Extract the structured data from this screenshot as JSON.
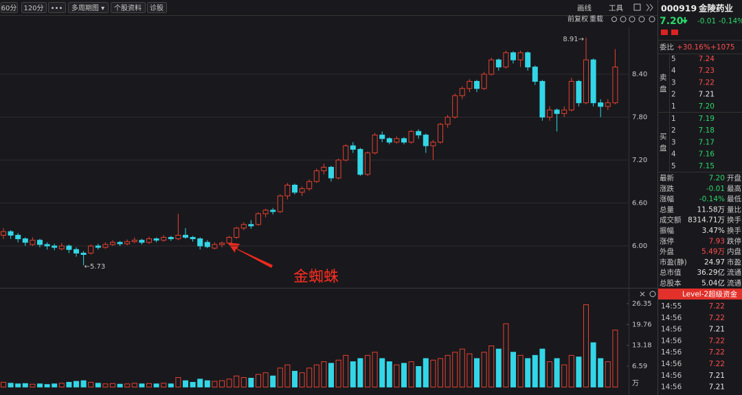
{
  "toolbar": {
    "left": [
      "60分",
      "120分",
      "•••",
      "多周期图 ▾",
      "个股资料",
      "诊股"
    ],
    "right": [
      "画线",
      "工具"
    ],
    "sub": [
      "前复权",
      "重载"
    ]
  },
  "chart_data": [
    {
      "type": "candlestick",
      "up_color": "#e8412f",
      "down_color": "#33d6e6",
      "grid": true,
      "ylim": [
        5.453,
        9.024
      ],
      "yticks": [
        {
          "value": 8.4,
          "label": "8.40"
        },
        {
          "value": 7.8,
          "label": "7.80"
        },
        {
          "value": 7.2,
          "label": "7.20"
        },
        {
          "value": 6.6,
          "label": "6.60"
        },
        {
          "value": 6,
          "label": "6.00"
        }
      ],
      "annotations": {
        "high": "8.91→",
        "low": "←5.73",
        "callout": "金蜘蛛"
      },
      "ohlc": [
        [
          6.15,
          6.25,
          6.1,
          6.2
        ],
        [
          6.2,
          6.22,
          6.1,
          6.15
        ],
        [
          6.15,
          6.18,
          6.05,
          6.1
        ],
        [
          6.1,
          6.12,
          6.0,
          6.05
        ],
        [
          6.02,
          6.12,
          6.0,
          6.08
        ],
        [
          6.08,
          6.1,
          5.98,
          6.02
        ],
        [
          6.02,
          6.05,
          5.95,
          6.0
        ],
        [
          6.0,
          6.03,
          5.94,
          5.98
        ],
        [
          5.96,
          6.04,
          5.94,
          6.0
        ],
        [
          6.0,
          6.02,
          5.9,
          5.95
        ],
        [
          5.95,
          5.98,
          5.85,
          5.9
        ],
        [
          5.9,
          5.93,
          5.73,
          5.88
        ],
        [
          5.9,
          6.02,
          5.88,
          6.0
        ],
        [
          6.0,
          6.03,
          5.95,
          5.98
        ],
        [
          5.98,
          6.05,
          5.96,
          6.02
        ],
        [
          6.02,
          6.08,
          6.0,
          6.05
        ],
        [
          6.05,
          6.07,
          6.0,
          6.03
        ],
        [
          6.03,
          6.09,
          6.01,
          6.06
        ],
        [
          6.06,
          6.12,
          6.04,
          6.08
        ],
        [
          6.08,
          6.1,
          6.02,
          6.05
        ],
        [
          6.05,
          6.13,
          6.03,
          6.1
        ],
        [
          6.1,
          6.12,
          6.05,
          6.08
        ],
        [
          6.08,
          6.15,
          6.06,
          6.12
        ],
        [
          6.12,
          6.14,
          6.07,
          6.1
        ],
        [
          6.1,
          6.45,
          6.08,
          6.15
        ],
        [
          6.15,
          6.25,
          6.1,
          6.12
        ],
        [
          6.12,
          6.14,
          6.06,
          6.1
        ],
        [
          6.1,
          6.12,
          5.95,
          6.0
        ],
        [
          6.05,
          6.08,
          5.97,
          5.99
        ],
        [
          5.97,
          6.05,
          5.95,
          6.02
        ],
        [
          6.02,
          6.06,
          5.98,
          6.04
        ],
        [
          6.04,
          6.14,
          6.02,
          6.12
        ],
        [
          6.12,
          6.27,
          6.1,
          6.25
        ],
        [
          6.25,
          6.33,
          6.22,
          6.3
        ],
        [
          6.3,
          6.36,
          6.24,
          6.28
        ],
        [
          6.3,
          6.47,
          6.28,
          6.45
        ],
        [
          6.45,
          6.52,
          6.4,
          6.5
        ],
        [
          6.5,
          6.53,
          6.44,
          6.48
        ],
        [
          6.48,
          6.72,
          6.46,
          6.7
        ],
        [
          6.7,
          6.88,
          6.65,
          6.85
        ],
        [
          6.85,
          6.87,
          6.72,
          6.75
        ],
        [
          6.75,
          6.83,
          6.7,
          6.8
        ],
        [
          6.8,
          6.93,
          6.77,
          6.9
        ],
        [
          6.9,
          7.08,
          6.88,
          7.05
        ],
        [
          7.05,
          7.15,
          7.0,
          7.1
        ],
        [
          7.1,
          7.12,
          6.9,
          6.95
        ],
        [
          6.95,
          7.22,
          6.93,
          7.2
        ],
        [
          7.2,
          7.42,
          7.18,
          7.4
        ],
        [
          7.4,
          7.45,
          7.3,
          7.35
        ],
        [
          7.35,
          7.37,
          6.98,
          7.0
        ],
        [
          7.0,
          7.32,
          6.98,
          7.3
        ],
        [
          7.3,
          7.58,
          7.28,
          7.55
        ],
        [
          7.55,
          7.6,
          7.45,
          7.5
        ],
        [
          7.5,
          7.52,
          7.42,
          7.45
        ],
        [
          7.45,
          7.53,
          7.43,
          7.5
        ],
        [
          7.5,
          7.52,
          7.42,
          7.45
        ],
        [
          7.45,
          7.62,
          7.43,
          7.6
        ],
        [
          7.6,
          7.63,
          7.5,
          7.55
        ],
        [
          7.55,
          7.57,
          7.3,
          7.4
        ],
        [
          7.4,
          7.48,
          7.2,
          7.45
        ],
        [
          7.45,
          7.72,
          7.43,
          7.7
        ],
        [
          7.7,
          7.83,
          7.65,
          7.8
        ],
        [
          7.8,
          8.13,
          7.78,
          8.1
        ],
        [
          8.1,
          8.23,
          8.05,
          8.2
        ],
        [
          8.2,
          8.33,
          8.15,
          8.3
        ],
        [
          8.3,
          8.32,
          8.15,
          8.2
        ],
        [
          8.2,
          8.43,
          8.18,
          8.4
        ],
        [
          8.4,
          8.63,
          8.38,
          8.6
        ],
        [
          8.6,
          8.62,
          8.45,
          8.5
        ],
        [
          8.5,
          8.73,
          8.48,
          8.7
        ],
        [
          8.7,
          8.72,
          8.55,
          8.6
        ],
        [
          8.6,
          8.73,
          8.5,
          8.7
        ],
        [
          8.7,
          8.72,
          8.45,
          8.5
        ],
        [
          8.5,
          8.52,
          8.25,
          8.3
        ],
        [
          8.3,
          8.32,
          7.75,
          7.8
        ],
        [
          7.8,
          7.95,
          7.75,
          7.9
        ],
        [
          7.9,
          7.92,
          7.6,
          7.85
        ],
        [
          7.85,
          7.95,
          7.8,
          7.9
        ],
        [
          7.9,
          8.35,
          7.88,
          8.3
        ],
        [
          8.3,
          8.32,
          7.95,
          8.0
        ],
        [
          8.0,
          8.91,
          7.98,
          8.6
        ],
        [
          8.6,
          8.62,
          7.95,
          8.0
        ],
        [
          8.0,
          8.05,
          7.8,
          7.95
        ],
        [
          7.95,
          8.05,
          7.9,
          8.0
        ],
        [
          8.0,
          8.75,
          7.98,
          8.5
        ]
      ]
    },
    {
      "type": "bar",
      "unit_label": "万",
      "ylim": [
        0,
        27.65
      ],
      "yticks": [
        26.35,
        19.76,
        13.18,
        6.59
      ],
      "values": [
        1.5,
        1.2,
        1.0,
        1.1,
        0.9,
        1.0,
        0.8,
        1.0,
        1.2,
        1.5,
        1.8,
        2.0,
        1.5,
        1.2,
        1.0,
        1.1,
        0.9,
        1.0,
        1.2,
        1.0,
        1.1,
        1.0,
        1.2,
        1.0,
        3.0,
        2.0,
        1.5,
        2.5,
        2.0,
        1.8,
        2.0,
        2.5,
        3.5,
        3.0,
        2.8,
        4.0,
        4.5,
        3.5,
        6.0,
        7.0,
        5.0,
        4.5,
        6.0,
        7.0,
        8.0,
        7.5,
        8.5,
        10.0,
        8.0,
        9.0,
        10.0,
        11.0,
        9.0,
        8.0,
        7.0,
        7.5,
        8.0,
        6.5,
        9.0,
        8.5,
        9.0,
        10.0,
        11.0,
        12.0,
        10.5,
        9.0,
        11.0,
        13.0,
        12.0,
        20.0,
        11.0,
        10.0,
        9.0,
        10.0,
        12.0,
        8.0,
        9.0,
        7.0,
        10.0,
        9.5,
        26.0,
        14.0,
        9.0,
        8.0,
        18.0
      ]
    }
  ],
  "quote": {
    "code": "000919",
    "name": "金陵药业",
    "price": "7.20",
    "change": "-0.01",
    "change_pct": "-0.14%",
    "ratio_label": "委比",
    "ratio": "+30.16%",
    "ratio_diff": "+1075",
    "sell_label": [
      "卖",
      "盘"
    ],
    "buy_label": [
      "买",
      "盘"
    ],
    "sell": [
      {
        "level": "5",
        "price": "7.24",
        "tone": "up"
      },
      {
        "level": "4",
        "price": "7.23",
        "tone": "up"
      },
      {
        "level": "3",
        "price": "7.22",
        "tone": "up"
      },
      {
        "level": "2",
        "price": "7.21",
        "tone": "flat"
      },
      {
        "level": "1",
        "price": "7.20",
        "tone": "down"
      }
    ],
    "buy": [
      {
        "level": "1",
        "price": "7.19",
        "tone": "down"
      },
      {
        "level": "2",
        "price": "7.18",
        "tone": "down"
      },
      {
        "level": "3",
        "price": "7.17",
        "tone": "down"
      },
      {
        "level": "4",
        "price": "7.16",
        "tone": "down"
      },
      {
        "level": "5",
        "price": "7.15",
        "tone": "down"
      }
    ],
    "stats": [
      {
        "label": "最新",
        "value": "7.20",
        "right": "开盘",
        "tone": "down"
      },
      {
        "label": "涨跌",
        "value": "-0.01",
        "right": "最高",
        "tone": "down"
      },
      {
        "label": "涨幅",
        "value": "-0.14%",
        "right": "最低",
        "tone": "down"
      },
      {
        "label": "总量",
        "value": "11.58万",
        "right": "量比",
        "tone": "flat"
      },
      {
        "label": "成交额",
        "value": "8314.71万",
        "right": "换手",
        "tone": "flat"
      },
      {
        "label": "振幅",
        "value": "3.47%",
        "right": "换手",
        "tone": "flat"
      },
      {
        "label": "涨停",
        "value": "7.93",
        "right": "跌停",
        "tone": "up"
      },
      {
        "label": "外盘",
        "value": "5.49万",
        "right": "内盘",
        "tone": "up"
      },
      {
        "label": "市盈(静)",
        "value": "24.97",
        "right": "市盈",
        "tone": "flat"
      },
      {
        "label": "总市值",
        "value": "36.29亿",
        "right": "流通",
        "tone": "flat"
      },
      {
        "label": "总股本",
        "value": "5.04亿",
        "right": "流通",
        "tone": "flat"
      }
    ],
    "level2": "Level-2超级资金",
    "trades": [
      {
        "time": "14:55",
        "price": "7.22",
        "tone": "up"
      },
      {
        "time": "14:56",
        "price": "7.22",
        "tone": "up"
      },
      {
        "time": "14:56",
        "price": "7.21",
        "tone": "flat"
      },
      {
        "time": "14:56",
        "price": "7.22",
        "tone": "up"
      },
      {
        "time": "14:56",
        "price": "7.22",
        "tone": "up"
      },
      {
        "time": "14:56",
        "price": "7.22",
        "tone": "up"
      },
      {
        "time": "14:56",
        "price": "7.21",
        "tone": "flat"
      },
      {
        "time": "14:56",
        "price": "7.21",
        "tone": "flat"
      }
    ]
  }
}
